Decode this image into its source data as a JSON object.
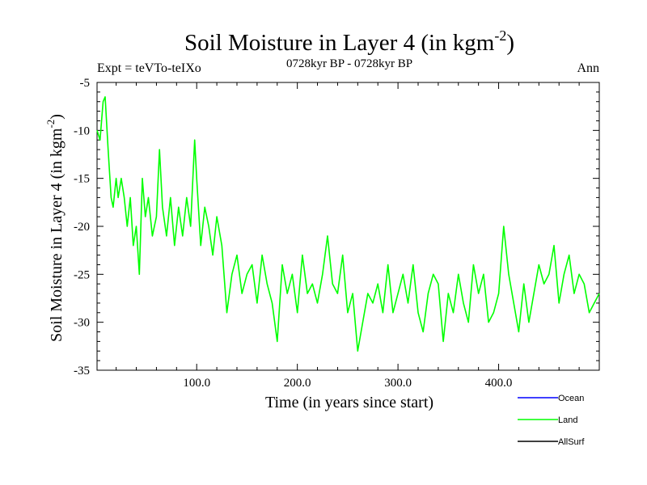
{
  "chart_data": {
    "type": "line",
    "title": "Soil Moisture in Layer 4 (in kgm",
    "title_sup": "-2",
    "title_end": ")",
    "subtitle": "0728kyr BP - 0728kyr BP",
    "left_note": "Expt = teVTo-teIXo",
    "right_note": "Ann",
    "xlabel": "Time (in years since start)",
    "ylabel": "Soil Moisture in Layer 4 (in kgm",
    "ylabel_sup": "-2",
    "ylabel_end": ")",
    "xlim": [
      1,
      500
    ],
    "ylim": [
      -35,
      -5
    ],
    "xticks": [
      100,
      200,
      300,
      400
    ],
    "xtick_labels": [
      "100.0",
      "200.0",
      "300.0",
      "400.0"
    ],
    "yticks": [
      -35,
      -30,
      -25,
      -20,
      -15,
      -10,
      -5
    ],
    "ytick_labels": [
      "-35",
      "-30",
      "-25",
      "-20",
      "-15",
      "-10",
      "-5"
    ],
    "legend": [
      {
        "name": "Ocean",
        "color": "#0000ff"
      },
      {
        "name": "Land",
        "color": "#00ff00"
      },
      {
        "name": "AllSurf",
        "color": "#000000"
      }
    ],
    "series": [
      {
        "name": "Land",
        "color": "#00ff00",
        "x": [
          1,
          4,
          7,
          9,
          12,
          15,
          17,
          20,
          22,
          25,
          28,
          31,
          34,
          37,
          40,
          43,
          46,
          49,
          52,
          56,
          60,
          63,
          66,
          70,
          74,
          78,
          82,
          86,
          90,
          94,
          98,
          100,
          104,
          108,
          112,
          116,
          120,
          125,
          130,
          135,
          140,
          145,
          150,
          155,
          160,
          165,
          170,
          175,
          180,
          185,
          190,
          195,
          200,
          205,
          210,
          215,
          220,
          225,
          230,
          235,
          240,
          245,
          250,
          255,
          260,
          265,
          270,
          275,
          280,
          285,
          290,
          295,
          300,
          305,
          310,
          315,
          320,
          325,
          330,
          335,
          340,
          345,
          350,
          355,
          360,
          365,
          370,
          375,
          380,
          385,
          390,
          395,
          400,
          405,
          410,
          415,
          420,
          425,
          430,
          435,
          440,
          445,
          450,
          455,
          460,
          465,
          470,
          475,
          480,
          485,
          490,
          495,
          500
        ],
        "y": [
          -10,
          -11,
          -7,
          -6.5,
          -12,
          -17,
          -18,
          -15,
          -17,
          -15,
          -17,
          -20,
          -17,
          -22,
          -20,
          -25,
          -15,
          -19,
          -17,
          -21,
          -19,
          -12,
          -18,
          -21,
          -17,
          -22,
          -18,
          -21,
          -17,
          -20,
          -11,
          -15,
          -22,
          -18,
          -20,
          -23,
          -19,
          -22,
          -29,
          -25,
          -23,
          -27,
          -25,
          -24,
          -28,
          -23,
          -26,
          -28,
          -32,
          -24,
          -27,
          -25,
          -29,
          -23,
          -27,
          -26,
          -28,
          -25,
          -21,
          -26,
          -27,
          -23,
          -29,
          -27,
          -33,
          -30,
          -27,
          -28,
          -26,
          -29,
          -24,
          -29,
          -27,
          -25,
          -28,
          -24,
          -29,
          -31,
          -27,
          -25,
          -26,
          -32,
          -27,
          -29,
          -25,
          -28,
          -30,
          -24,
          -27,
          -25,
          -30,
          -29,
          -27,
          -20,
          -25,
          -28,
          -31,
          -26,
          -30,
          -27,
          -24,
          -26,
          -25,
          -22,
          -28,
          -25,
          -23,
          -27,
          -25,
          -26,
          -29,
          -28,
          -27
        ]
      },
      {
        "name": "Ocean",
        "color": "#0000ff",
        "x": [],
        "y": []
      },
      {
        "name": "AllSurf",
        "color": "#000000",
        "x": [],
        "y": []
      }
    ]
  }
}
